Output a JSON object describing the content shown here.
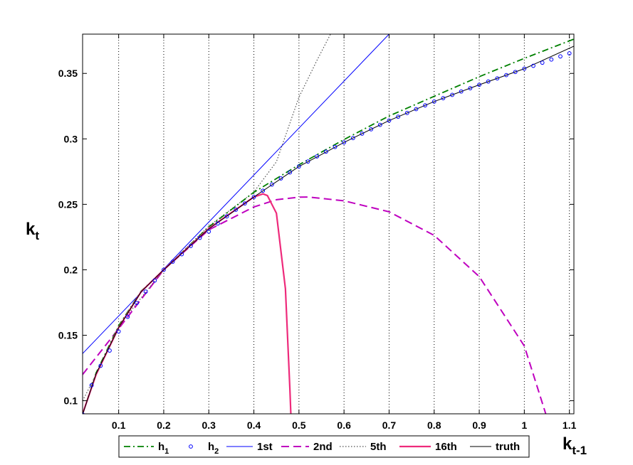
{
  "chart_data": {
    "type": "line",
    "xlabel": {
      "main": "k",
      "sub": "t-1"
    },
    "ylabel": {
      "main": "k",
      "sub": "t"
    },
    "xlim": [
      0.02,
      1.11
    ],
    "ylim": [
      0.09,
      0.38
    ],
    "x_ticks": [
      {
        "value": 0.1,
        "label": "0.1"
      },
      {
        "value": 0.2,
        "label": "0.2"
      },
      {
        "value": 0.3,
        "label": "0.3"
      },
      {
        "value": 0.4,
        "label": "0.4"
      },
      {
        "value": 0.5,
        "label": "0.5"
      },
      {
        "value": 0.6,
        "label": "0.6"
      },
      {
        "value": 0.7,
        "label": "0.7"
      },
      {
        "value": 0.8,
        "label": "0.8"
      },
      {
        "value": 0.9,
        "label": "0.9"
      },
      {
        "value": 1.0,
        "label": "1"
      },
      {
        "value": 1.1,
        "label": "1.1"
      }
    ],
    "y_ticks": [
      {
        "value": 0.1,
        "label": "0.1"
      },
      {
        "value": 0.15,
        "label": "0.15"
      },
      {
        "value": 0.2,
        "label": "0.2"
      },
      {
        "value": 0.25,
        "label": "0.25"
      },
      {
        "value": 0.3,
        "label": "0.3"
      },
      {
        "value": 0.35,
        "label": "0.35"
      }
    ],
    "grid": "vertical dotted",
    "legend_position": "bottom",
    "series": [
      {
        "name": "h",
        "sub": "1",
        "style": "dashdot",
        "color": "#008000",
        "x": [
          0.02,
          0.05,
          0.1,
          0.15,
          0.2,
          0.3,
          0.4,
          0.5,
          0.6,
          0.7,
          0.8,
          0.9,
          1.0,
          1.11
        ],
        "y": [
          0.0899,
          0.1213,
          0.1572,
          0.1837,
          0.2,
          0.2327,
          0.2592,
          0.2802,
          0.2995,
          0.3175,
          0.3325,
          0.3475,
          0.3615,
          0.3762
        ]
      },
      {
        "name": "h",
        "sub": "2",
        "style": "markers",
        "color": "#0000ff",
        "x": [
          0.02,
          0.04,
          0.06,
          0.08,
          0.1,
          0.12,
          0.14,
          0.16,
          0.18,
          0.2,
          0.22,
          0.24,
          0.26,
          0.28,
          0.3,
          0.32,
          0.34,
          0.36,
          0.38,
          0.4,
          0.42,
          0.44,
          0.46,
          0.48,
          0.5,
          0.52,
          0.54,
          0.56,
          0.58,
          0.6,
          0.62,
          0.64,
          0.66,
          0.68,
          0.7,
          0.72,
          0.74,
          0.76,
          0.78,
          0.8,
          0.82,
          0.84,
          0.86,
          0.88,
          0.9,
          0.92,
          0.94,
          0.96,
          0.98,
          1.0,
          1.02,
          1.04,
          1.06,
          1.08,
          1.1
        ],
        "y": [
          0.0895,
          0.1118,
          0.1267,
          0.1383,
          0.1529,
          0.1641,
          0.1746,
          0.1833,
          0.1918,
          0.2,
          0.2062,
          0.2119,
          0.2182,
          0.2244,
          0.2292,
          0.2354,
          0.2408,
          0.2459,
          0.2507,
          0.2556,
          0.2604,
          0.2651,
          0.2698,
          0.2744,
          0.2789,
          0.2827,
          0.2866,
          0.2902,
          0.2938,
          0.2973,
          0.3006,
          0.304,
          0.3073,
          0.3107,
          0.314,
          0.3169,
          0.3198,
          0.3227,
          0.3256,
          0.3285,
          0.3311,
          0.3336,
          0.3362,
          0.3387,
          0.3413,
          0.3438,
          0.3462,
          0.3487,
          0.3511,
          0.3536,
          0.3558,
          0.3582,
          0.3606,
          0.363,
          0.3653
        ]
      },
      {
        "name": "1st",
        "style": "solid",
        "color": "#0000ff",
        "x": [
          0.02,
          0.7
        ],
        "y": [
          0.136,
          0.38
        ]
      },
      {
        "name": "2nd",
        "style": "dashed",
        "color": "#bf00bf",
        "x": [
          0.02,
          0.1,
          0.2,
          0.3,
          0.4,
          0.45,
          0.5,
          0.52,
          0.6,
          0.7,
          0.8,
          0.9,
          1.0,
          1.05
        ],
        "y": [
          0.12,
          0.155,
          0.2,
          0.2305,
          0.248,
          0.2535,
          0.2555,
          0.2556,
          0.2527,
          0.2443,
          0.2263,
          0.1948,
          0.1418,
          0.0873
        ]
      },
      {
        "name": "5th",
        "style": "dotted",
        "color": "#505050",
        "x": [
          0.02,
          0.05,
          0.1,
          0.2,
          0.3,
          0.4,
          0.45,
          0.5,
          0.54,
          0.57
        ],
        "y": [
          0.1,
          0.12,
          0.1572,
          0.2,
          0.2333,
          0.2594,
          0.2825,
          0.3318,
          0.36,
          0.38
        ]
      },
      {
        "name": "16th",
        "style": "solid-thick",
        "color": "#ee2a7b",
        "x": [
          0.02,
          0.05,
          0.1,
          0.15,
          0.2,
          0.3,
          0.4,
          0.42,
          0.43,
          0.45,
          0.47,
          0.48,
          0.482
        ],
        "y": [
          0.09,
          0.12,
          0.1558,
          0.1833,
          0.2,
          0.2316,
          0.2556,
          0.258,
          0.2567,
          0.2432,
          0.1855,
          0.108,
          0.09
        ]
      },
      {
        "name": "truth",
        "style": "solid-thin",
        "color": "#000000",
        "x": [
          0.02,
          0.05,
          0.1,
          0.15,
          0.2,
          0.3,
          0.4,
          0.5,
          0.6,
          0.7,
          0.8,
          0.9,
          1.0,
          1.11
        ],
        "y": [
          0.0895,
          0.1206,
          0.1558,
          0.1833,
          0.2,
          0.2312,
          0.2556,
          0.2789,
          0.2973,
          0.314,
          0.3285,
          0.3413,
          0.3536,
          0.3708
        ]
      }
    ]
  }
}
